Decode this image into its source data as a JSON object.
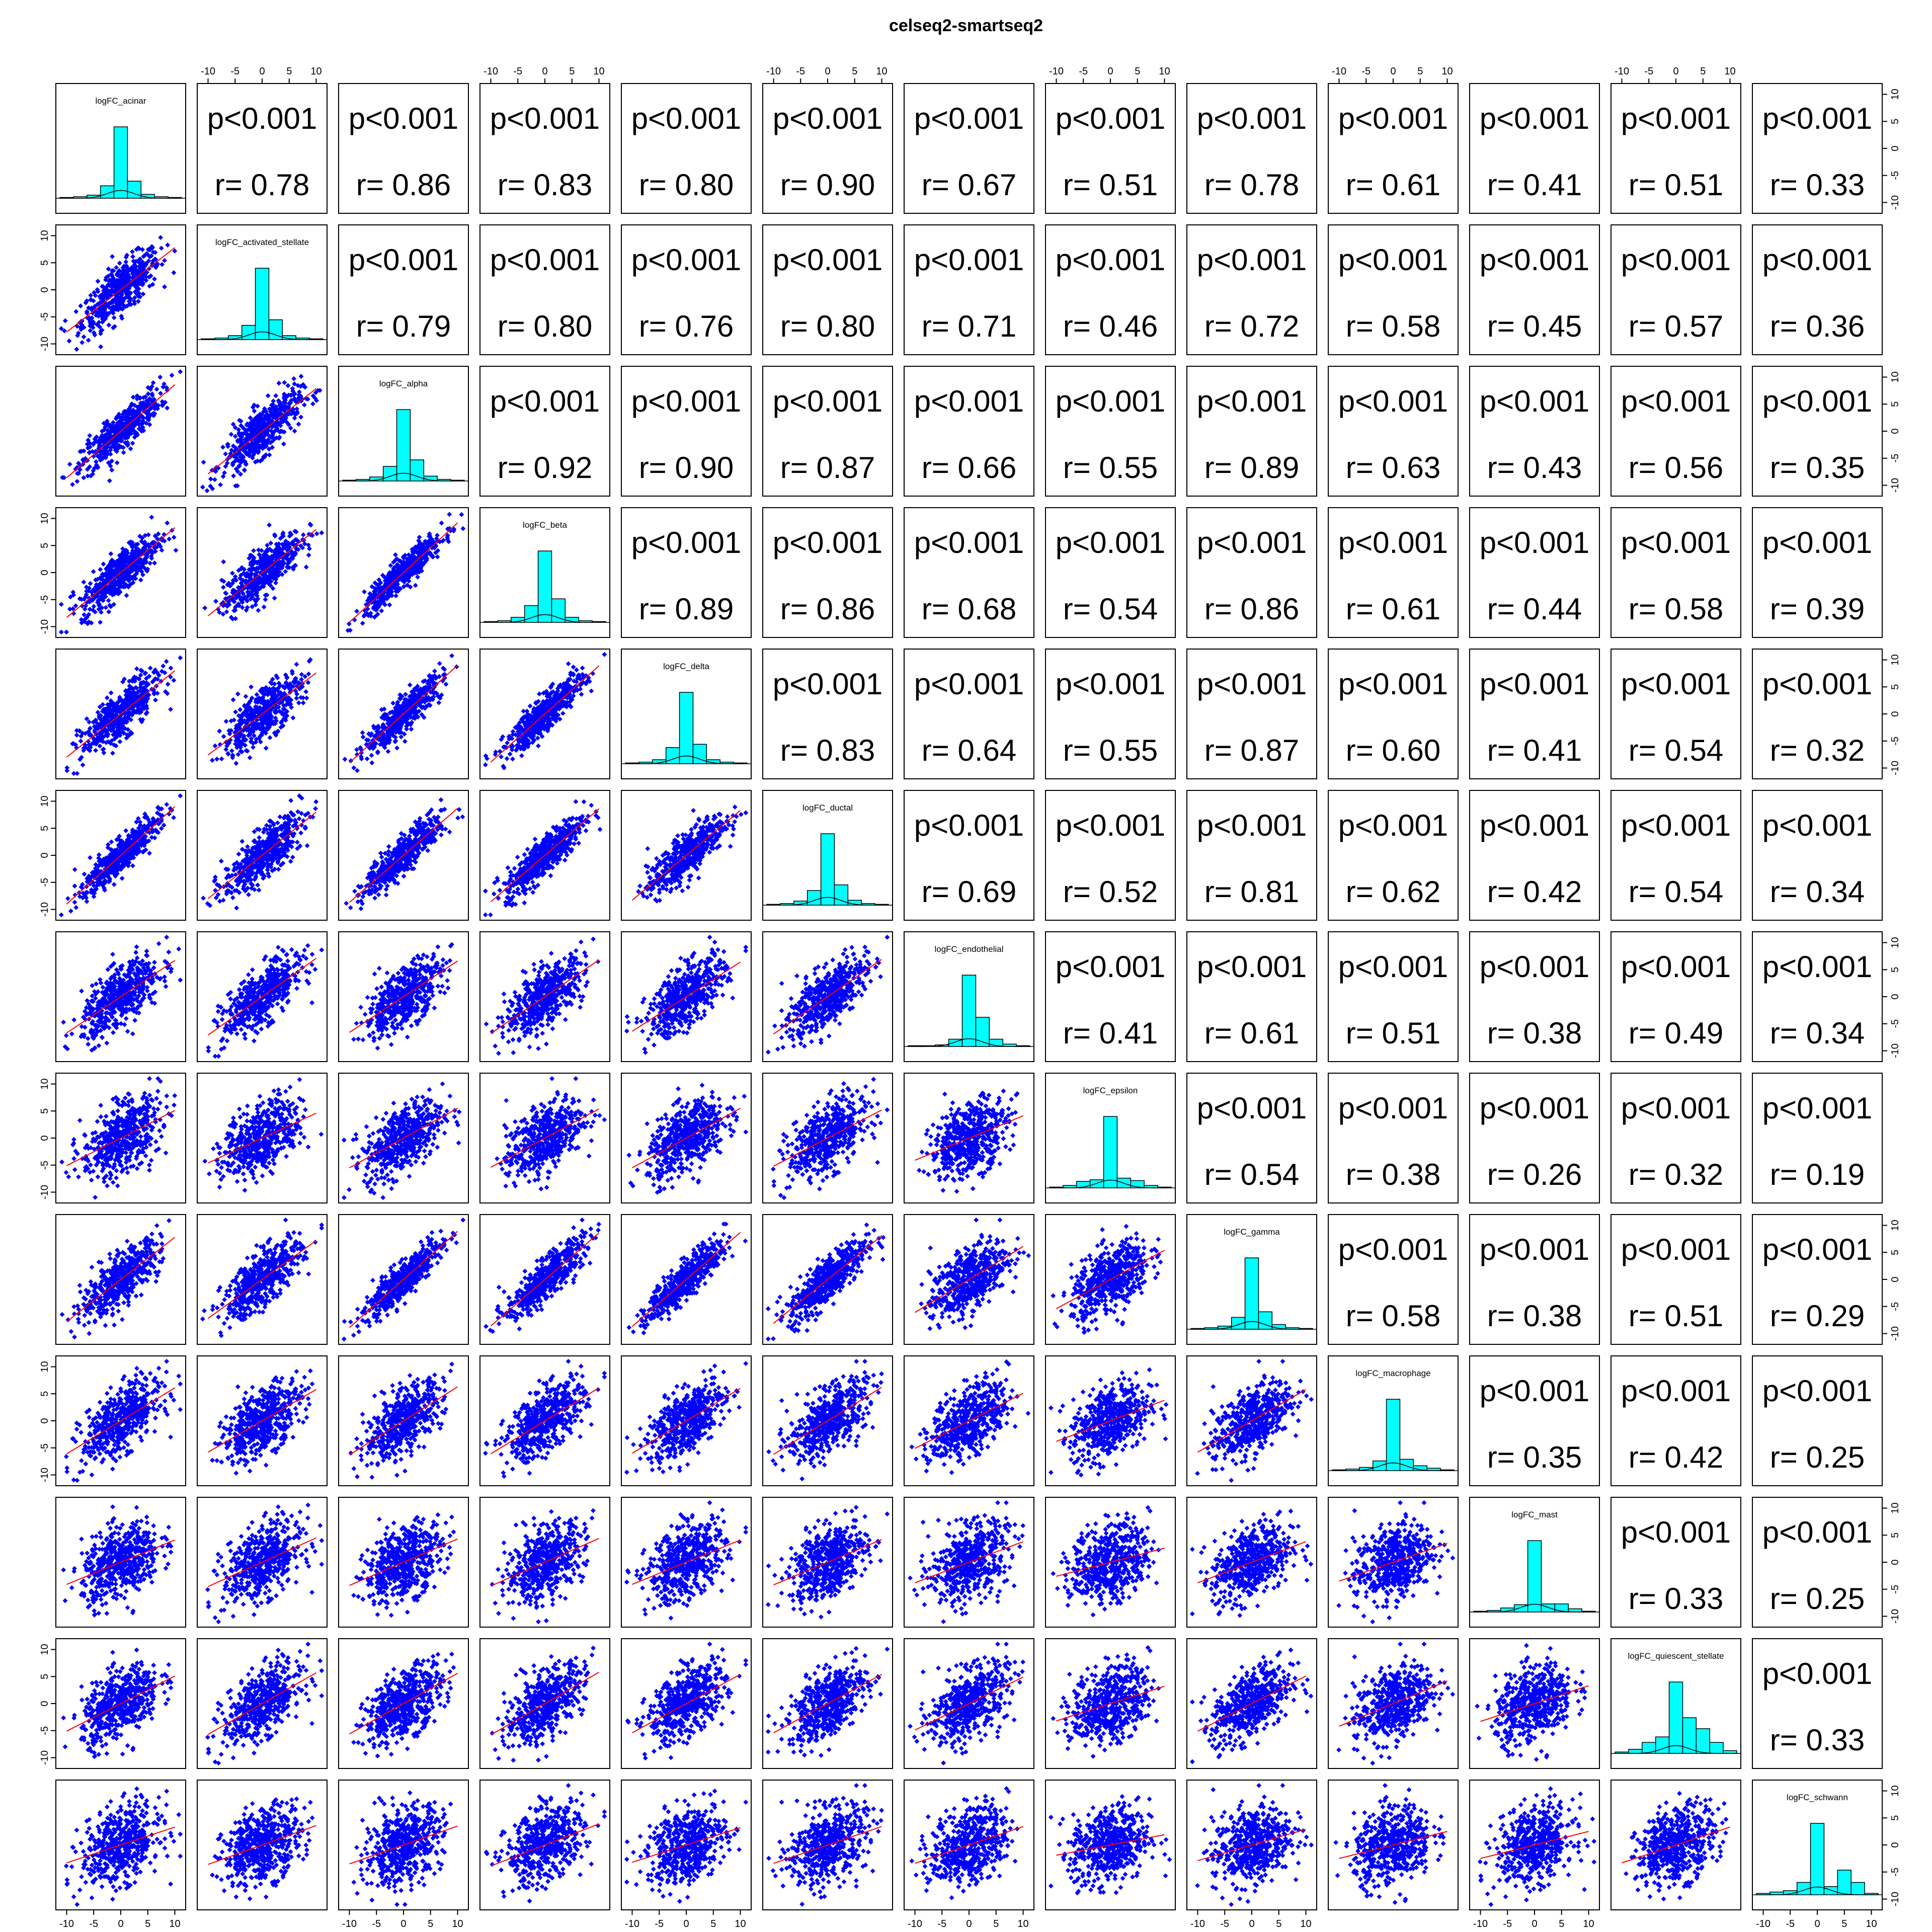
{
  "chart_data": {
    "type": "scatter",
    "chart_kind": "pairs-matrix",
    "title": "celseq2-smartseq2",
    "variables": [
      "logFC_acinar",
      "logFC_activated_stellate",
      "logFC_alpha",
      "logFC_beta",
      "logFC_delta",
      "logFC_ductal",
      "logFC_endothelial",
      "logFC_epsilon",
      "logFC_gamma",
      "logFC_macrophage",
      "logFC_mast",
      "logFC_quiescent_stellate",
      "logFC_schwann"
    ],
    "axis_range": [
      -12,
      12
    ],
    "axis_ticks": [
      -10,
      -5,
      0,
      5,
      10
    ],
    "p_value_label": "p<0.001",
    "r_prefix": "r=",
    "correlations": [
      [
        1,
        0.78,
        0.86,
        0.83,
        0.8,
        0.9,
        0.67,
        0.51,
        0.78,
        0.61,
        0.41,
        0.51,
        0.33
      ],
      [
        0.78,
        1,
        0.79,
        0.8,
        0.76,
        0.8,
        0.71,
        0.46,
        0.72,
        0.58,
        0.45,
        0.57,
        0.36
      ],
      [
        0.86,
        0.79,
        1,
        0.92,
        0.9,
        0.87,
        0.66,
        0.55,
        0.89,
        0.63,
        0.43,
        0.56,
        0.35
      ],
      [
        0.83,
        0.8,
        0.92,
        1,
        0.89,
        0.86,
        0.68,
        0.54,
        0.86,
        0.61,
        0.44,
        0.58,
        0.39
      ],
      [
        0.8,
        0.76,
        0.9,
        0.89,
        1,
        0.83,
        0.64,
        0.55,
        0.87,
        0.6,
        0.41,
        0.54,
        0.32
      ],
      [
        0.9,
        0.8,
        0.87,
        0.86,
        0.83,
        1,
        0.69,
        0.52,
        0.81,
        0.62,
        0.42,
        0.54,
        0.34
      ],
      [
        0.67,
        0.71,
        0.66,
        0.68,
        0.64,
        0.69,
        1,
        0.41,
        0.61,
        0.51,
        0.38,
        0.49,
        0.34
      ],
      [
        0.51,
        0.46,
        0.55,
        0.54,
        0.55,
        0.52,
        0.41,
        1,
        0.54,
        0.38,
        0.26,
        0.32,
        0.19
      ],
      [
        0.78,
        0.72,
        0.89,
        0.86,
        0.87,
        0.81,
        0.61,
        0.54,
        1,
        0.58,
        0.38,
        0.51,
        0.29
      ],
      [
        0.61,
        0.58,
        0.63,
        0.61,
        0.6,
        0.62,
        0.51,
        0.38,
        0.58,
        1,
        0.35,
        0.42,
        0.25
      ],
      [
        0.41,
        0.45,
        0.43,
        0.44,
        0.41,
        0.42,
        0.38,
        0.26,
        0.38,
        0.35,
        1,
        0.33,
        0.25
      ],
      [
        0.51,
        0.57,
        0.56,
        0.58,
        0.54,
        0.54,
        0.49,
        0.32,
        0.51,
        0.42,
        0.33,
        1,
        0.33
      ],
      [
        0.33,
        0.36,
        0.35,
        0.39,
        0.32,
        0.34,
        0.34,
        0.19,
        0.29,
        0.25,
        0.25,
        0.33,
        1
      ]
    ],
    "histograms": [
      [
        1,
        2,
        4,
        16,
        92,
        22,
        5,
        2,
        1
      ],
      [
        1,
        2,
        5,
        18,
        90,
        25,
        5,
        2,
        1
      ],
      [
        1,
        2,
        5,
        18,
        88,
        26,
        6,
        2,
        1
      ],
      [
        1,
        2,
        6,
        20,
        85,
        28,
        6,
        2,
        1
      ],
      [
        1,
        2,
        5,
        20,
        88,
        24,
        5,
        2,
        1
      ],
      [
        1,
        2,
        5,
        18,
        88,
        25,
        6,
        2,
        1
      ],
      [
        1,
        1,
        2,
        9,
        88,
        36,
        9,
        3,
        1
      ],
      [
        1,
        3,
        8,
        10,
        88,
        12,
        9,
        3,
        1
      ],
      [
        1,
        2,
        4,
        15,
        90,
        22,
        6,
        2,
        1
      ],
      [
        1,
        2,
        4,
        12,
        88,
        14,
        6,
        3,
        1
      ],
      [
        1,
        2,
        5,
        9,
        88,
        10,
        10,
        4,
        1
      ],
      [
        1,
        3,
        8,
        12,
        52,
        26,
        18,
        8,
        2
      ],
      [
        1,
        2,
        3,
        9,
        52,
        6,
        18,
        9,
        1
      ]
    ],
    "point_color": "#0000ff",
    "smooth_color": "#ff0000",
    "hist_color": "#00ffff",
    "density_color": "#000000"
  }
}
